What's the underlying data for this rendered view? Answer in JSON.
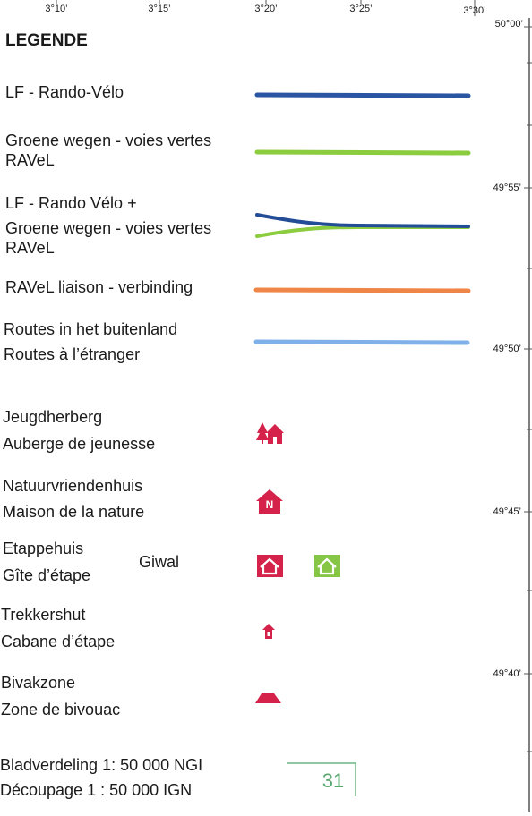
{
  "top_ticks": [
    "3°10’",
    "3°15’",
    "3°20’",
    "3°25’",
    "3°30’"
  ],
  "right_ticks": [
    "50°00’",
    "49°55’",
    "49°50’",
    "49°45’",
    "49°40’"
  ],
  "legend": {
    "title": "LEGENDE",
    "lines": [
      {
        "labels": [
          "LF - Rando-Vélo"
        ]
      },
      {
        "labels": [
          "Groene wegen - voies vertes",
          "RAVeL"
        ]
      },
      {
        "labels": [
          "LF - Rando Vélo +",
          "Groene wegen - voies vertes",
          "RAVeL"
        ]
      },
      {
        "labels": [
          "RAVeL liaison - verbinding"
        ]
      },
      {
        "labels": [
          "Routes in het buitenland",
          "Routes à l’étranger"
        ]
      }
    ],
    "symbols": [
      {
        "labels": [
          "Jeugdherberg",
          "Auberge de jeunesse"
        ]
      },
      {
        "labels": [
          "Natuurvriendenhuis",
          "Maison de la nature"
        ]
      },
      {
        "labels": [
          "Etappehuis",
          "Gîte d’étape"
        ],
        "extra": "Giwal"
      },
      {
        "labels": [
          "Trekkershut",
          "Cabane d’étape"
        ]
      },
      {
        "labels": [
          "Bivakzone",
          "Zone de bivouac"
        ]
      }
    ]
  },
  "footer": [
    "Bladverdeling 1: 50 000 NGI",
    "Découpage 1 : 50 000 IGN"
  ],
  "page_number": "31"
}
